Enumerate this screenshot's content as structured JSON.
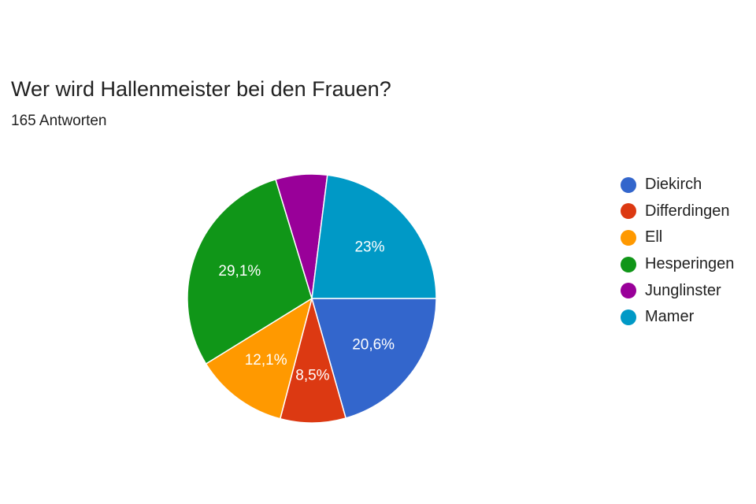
{
  "form": {
    "question": "Wer wird Hallenmeister bei den Frauen?",
    "responses": "165 Antworten"
  },
  "chart_data": {
    "type": "pie",
    "title": "Wer wird Hallenmeister bei den Frauen?",
    "subtitle": "165 Antworten",
    "start_angle_deg": 90,
    "direction": "clockwise",
    "legend": "right",
    "slices": [
      {
        "label": "Diekirch",
        "value": 20.6,
        "value_label": "20,6%",
        "color": "#3366cc"
      },
      {
        "label": "Differdingen",
        "value": 8.5,
        "value_label": "8,5%",
        "color": "#dc3912"
      },
      {
        "label": "Ell",
        "value": 12.1,
        "value_label": "12,1%",
        "color": "#ff9900"
      },
      {
        "label": "Hesperingen",
        "value": 29.1,
        "value_label": "29,1%",
        "color": "#109618"
      },
      {
        "label": "Junglinster",
        "value": 6.7,
        "value_label": "",
        "color": "#990099"
      },
      {
        "label": "Mamer",
        "value": 23.0,
        "value_label": "23%",
        "color": "#0099c6"
      }
    ]
  }
}
